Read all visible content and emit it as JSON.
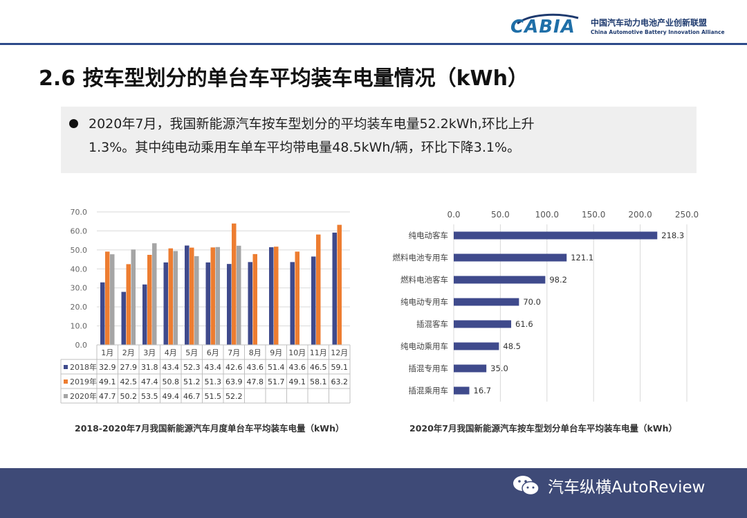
{
  "header": {
    "logo_text": "CABIA",
    "org_cn": "中国汽车动力电池产业创新联盟",
    "org_en": "China Automotive Battery Innovation Alliance",
    "line_color": "#2d4a8a"
  },
  "title": "2.6 按车型划分的单台车平均装车电量情况（kWh）",
  "bullet": {
    "line1": "2020年7月，我国新能源汽车按车型划分的平均装车电量52.2kWh,环比上升",
    "line2": "1.3%。其中纯电动乘用车单车平均带电量48.5kWh/辆，环比下降3.1%。"
  },
  "captions": {
    "left": "2018-2020年7月我国新能源汽车月度单台车平均装车电量（kWh）",
    "right": "2020年7月我国新能源汽车按车型划分单台车平均装车电量（kWh）"
  },
  "watermark": "汽车纵横AutoReview",
  "chart_data": [
    {
      "type": "bar",
      "title": "2018-2020年7月我国新能源汽车月度单台车平均装车电量（kWh）",
      "categories": [
        "1月",
        "2月",
        "3月",
        "4月",
        "5月",
        "6月",
        "7月",
        "8月",
        "9月",
        "10月",
        "11月",
        "12月"
      ],
      "series": [
        {
          "name": "2018年",
          "color": "#3f4a8c",
          "values": [
            32.9,
            27.9,
            31.8,
            43.4,
            52.3,
            43.4,
            42.6,
            43.6,
            51.4,
            43.6,
            46.5,
            59.1
          ],
          "labels": [
            "32.9",
            "27.9",
            "31.8",
            "43.4",
            "52.3",
            "43.4",
            "42.6",
            "43.6",
            "51.4",
            "43.6",
            "46.5",
            "59.1"
          ]
        },
        {
          "name": "2019年",
          "color": "#ed7d31",
          "values": [
            49.1,
            42.5,
            47.4,
            50.8,
            51.2,
            51.3,
            63.9,
            47.8,
            51.7,
            49.1,
            58.1,
            63.2
          ],
          "labels": [
            "49.1",
            "42.5",
            "47.4",
            "50.8",
            "51.2",
            "51.3",
            "63.9",
            "47.8",
            "51.7",
            "49.1",
            "58.1",
            "63.2"
          ]
        },
        {
          "name": "2020年",
          "color": "#a5a5a5",
          "values": [
            47.7,
            50.2,
            53.5,
            49.4,
            46.7,
            51.5,
            52.2,
            null,
            null,
            null,
            null,
            null
          ],
          "labels": [
            "47.7",
            "50.2",
            "53.5",
            "49.4",
            "46.7",
            "51.5",
            "52.2",
            "",
            "",
            "",
            "",
            ""
          ]
        }
      ],
      "ylim": [
        0,
        70
      ],
      "yticks": [
        "0.0",
        "10.0",
        "20.0",
        "30.0",
        "40.0",
        "50.0",
        "60.0",
        "70.0"
      ],
      "grid": true,
      "legend": "data-table"
    },
    {
      "type": "bar",
      "orientation": "horizontal",
      "title": "2020年7月我国新能源汽车按车型划分单台车平均装车电量（kWh）",
      "categories": [
        "纯电动客车",
        "燃料电池专用车",
        "燃料电池客车",
        "纯电动专用车",
        "插混客车",
        "纯电动乘用车",
        "插混专用车",
        "插混乘用车"
      ],
      "values": [
        218.3,
        121.1,
        98.2,
        70.0,
        61.6,
        48.5,
        35.0,
        16.7
      ],
      "labels": [
        "218.3",
        "121.1",
        "98.2",
        "70.0",
        "61.6",
        "48.5",
        "35.0",
        "16.7"
      ],
      "color": "#3f4a8c",
      "xlim": [
        0,
        250
      ],
      "xticks": [
        "0.0",
        "50.0",
        "100.0",
        "150.0",
        "200.0",
        "250.0"
      ],
      "grid": true
    }
  ]
}
